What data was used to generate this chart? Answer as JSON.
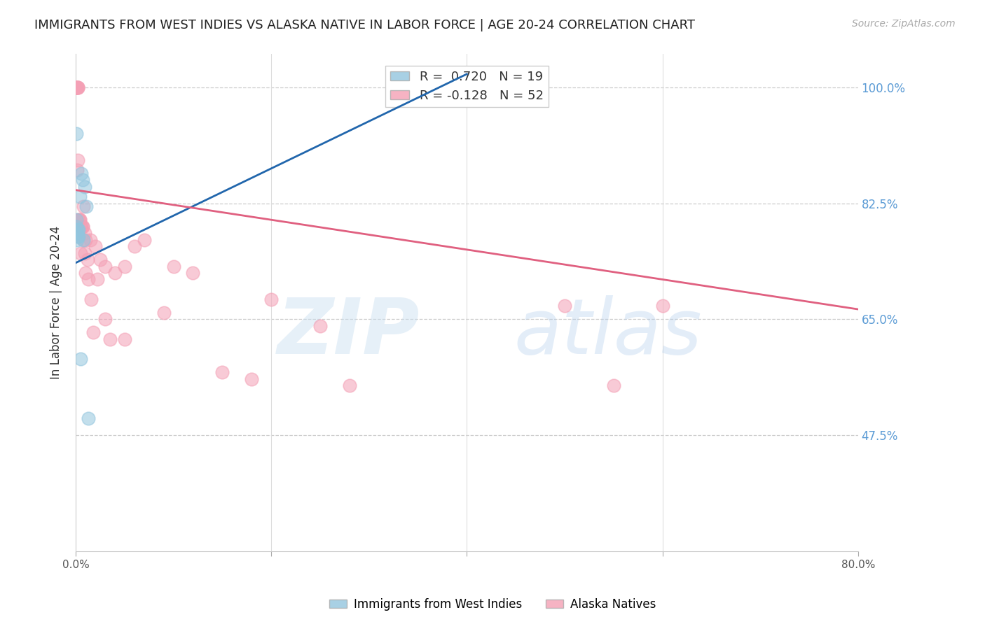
{
  "title": "IMMIGRANTS FROM WEST INDIES VS ALASKA NATIVE IN LABOR FORCE | AGE 20-24 CORRELATION CHART",
  "source": "Source: ZipAtlas.com",
  "ylabel": "In Labor Force | Age 20-24",
  "ytick_labels": [
    "100.0%",
    "82.5%",
    "65.0%",
    "47.5%"
  ],
  "ytick_values": [
    1.0,
    0.825,
    0.65,
    0.475
  ],
  "xlim": [
    0.0,
    0.8
  ],
  "ylim": [
    0.3,
    1.05
  ],
  "blue_color": "#92c5de",
  "pink_color": "#f4a0b5",
  "blue_line_color": "#2166ac",
  "pink_line_color": "#e06080",
  "title_fontsize": 13,
  "source_fontsize": 10,
  "blue_x": [
    0.0005,
    0.0008,
    0.001,
    0.001,
    0.0012,
    0.0015,
    0.002,
    0.002,
    0.003,
    0.003,
    0.004,
    0.005,
    0.006,
    0.007,
    0.008,
    0.009,
    0.011,
    0.013,
    0.38
  ],
  "blue_y": [
    0.93,
    0.78,
    0.79,
    0.8,
    0.77,
    0.78,
    0.775,
    0.785,
    0.775,
    0.785,
    0.835,
    0.59,
    0.87,
    0.86,
    0.77,
    0.85,
    0.82,
    0.5,
    1.0
  ],
  "pink_x": [
    0.001,
    0.001,
    0.001,
    0.001,
    0.001,
    0.0015,
    0.002,
    0.002,
    0.002,
    0.0025,
    0.003,
    0.003,
    0.004,
    0.0045,
    0.005,
    0.005,
    0.006,
    0.007,
    0.007,
    0.008,
    0.008,
    0.009,
    0.009,
    0.01,
    0.01,
    0.012,
    0.013,
    0.015,
    0.016,
    0.018,
    0.02,
    0.022,
    0.025,
    0.03,
    0.03,
    0.035,
    0.04,
    0.05,
    0.05,
    0.06,
    0.07,
    0.09,
    0.1,
    0.12,
    0.15,
    0.18,
    0.2,
    0.25,
    0.28,
    0.5,
    0.55,
    0.6
  ],
  "pink_y": [
    1.0,
    1.0,
    1.0,
    1.0,
    1.0,
    0.875,
    1.0,
    1.0,
    1.0,
    0.89,
    0.8,
    0.8,
    0.8,
    0.8,
    0.79,
    0.75,
    0.79,
    0.79,
    0.79,
    0.82,
    0.77,
    0.78,
    0.75,
    0.77,
    0.72,
    0.74,
    0.71,
    0.77,
    0.68,
    0.63,
    0.76,
    0.71,
    0.74,
    0.73,
    0.65,
    0.62,
    0.72,
    0.73,
    0.62,
    0.76,
    0.77,
    0.66,
    0.73,
    0.72,
    0.57,
    0.56,
    0.68,
    0.64,
    0.55,
    0.67,
    0.55,
    0.67
  ],
  "pink_trend_x": [
    0.0,
    0.8
  ],
  "pink_trend_y": [
    0.845,
    0.665
  ],
  "blue_trend_x": [
    0.0,
    0.4
  ],
  "blue_trend_y": [
    0.735,
    1.02
  ]
}
